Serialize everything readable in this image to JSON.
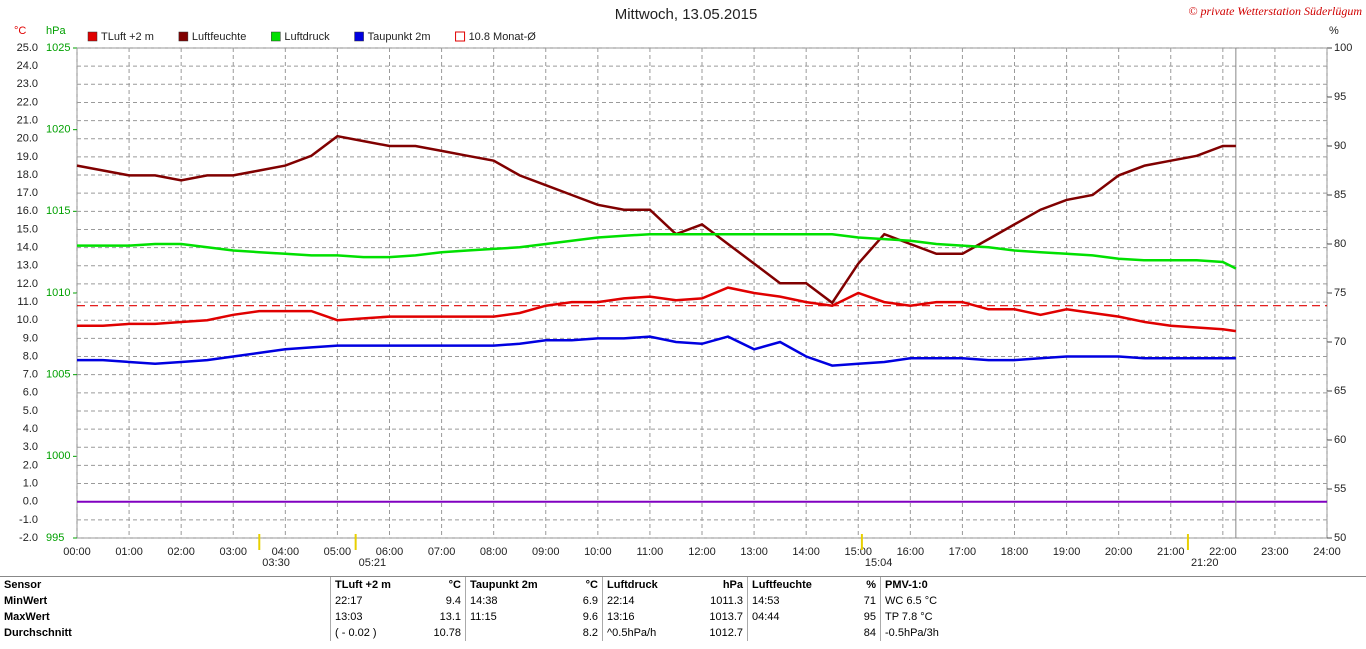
{
  "chart_data": {
    "type": "line",
    "title": "Mittwoch, 13.05.2015",
    "credit": "© private Wetterstation Süderlügum",
    "ylabel": "°C",
    "y2label": "hPa",
    "y3label": "%",
    "x": [
      0,
      0.5,
      1,
      1.5,
      2,
      2.5,
      3,
      3.5,
      4,
      4.5,
      5,
      5.5,
      6,
      6.5,
      7,
      7.5,
      8,
      8.5,
      9,
      9.5,
      10,
      10.5,
      11,
      11.5,
      12,
      12.5,
      13,
      13.5,
      14,
      14.5,
      15,
      15.5,
      16,
      16.5,
      17,
      17.5,
      18,
      18.5,
      19,
      19.5,
      20,
      20.5,
      21,
      21.5,
      22,
      22.25
    ],
    "xlim": [
      0,
      24
    ],
    "xticks": [
      {
        "value": 0,
        "label": "00:00"
      },
      {
        "value": 1,
        "label": "01:00"
      },
      {
        "value": 2,
        "label": "02:00"
      },
      {
        "value": 3,
        "label": "03:00"
      },
      {
        "value": 4,
        "label": "04:00"
      },
      {
        "value": 5,
        "label": "05:00"
      },
      {
        "value": 6,
        "label": "06:00"
      },
      {
        "value": 7,
        "label": "07:00"
      },
      {
        "value": 8,
        "label": "08:00"
      },
      {
        "value": 9,
        "label": "09:00"
      },
      {
        "value": 10,
        "label": "10:00"
      },
      {
        "value": 11,
        "label": "11:00"
      },
      {
        "value": 12,
        "label": "12:00"
      },
      {
        "value": 13,
        "label": "13:00"
      },
      {
        "value": 14,
        "label": "14:00"
      },
      {
        "value": 15,
        "label": "15:00"
      },
      {
        "value": 16,
        "label": "16:00"
      },
      {
        "value": 17,
        "label": "17:00"
      },
      {
        "value": 18,
        "label": "18:00"
      },
      {
        "value": 19,
        "label": "19:00"
      },
      {
        "value": 20,
        "label": "20:00"
      },
      {
        "value": 21,
        "label": "21:00"
      },
      {
        "value": 22,
        "label": "22:00"
      },
      {
        "value": 23,
        "label": "23:00"
      },
      {
        "value": 24,
        "label": "24:00"
      }
    ],
    "ylim": [
      -2,
      25
    ],
    "yticks": [
      {
        "value": -2,
        "label": "-2.0"
      },
      {
        "value": -1,
        "label": "-1.0"
      },
      {
        "value": 0,
        "label": "0.0"
      },
      {
        "value": 1,
        "label": "1.0"
      },
      {
        "value": 2,
        "label": "2.0"
      },
      {
        "value": 3,
        "label": "3.0"
      },
      {
        "value": 4,
        "label": "4.0"
      },
      {
        "value": 5,
        "label": "5.0"
      },
      {
        "value": 6,
        "label": "6.0"
      },
      {
        "value": 7,
        "label": "7.0"
      },
      {
        "value": 8,
        "label": "8.0"
      },
      {
        "value": 9,
        "label": "9.0"
      },
      {
        "value": 10,
        "label": "10.0"
      },
      {
        "value": 11,
        "label": "11.0"
      },
      {
        "value": 12,
        "label": "12.0"
      },
      {
        "value": 13,
        "label": "13.0"
      },
      {
        "value": 14,
        "label": "14.0"
      },
      {
        "value": 15,
        "label": "15.0"
      },
      {
        "value": 16,
        "label": "16.0"
      },
      {
        "value": 17,
        "label": "17.0"
      },
      {
        "value": 18,
        "label": "18.0"
      },
      {
        "value": 19,
        "label": "19.0"
      },
      {
        "value": 20,
        "label": "20.0"
      },
      {
        "value": 21,
        "label": "21.0"
      },
      {
        "value": 22,
        "label": "22.0"
      },
      {
        "value": 23,
        "label": "23.0"
      },
      {
        "value": 24,
        "label": "24.0"
      },
      {
        "value": 25,
        "label": "25.0"
      }
    ],
    "y2lim": [
      995,
      1025
    ],
    "y2ticks": [
      995,
      1000,
      1005,
      1010,
      1015,
      1020,
      1025
    ],
    "y3lim": [
      50,
      100
    ],
    "y3ticks": [
      50,
      55,
      60,
      65,
      70,
      75,
      80,
      85,
      90,
      95,
      100
    ],
    "grid": true,
    "series": [
      {
        "name": "TLuft +2 m",
        "color": "#e00000",
        "axis": "y",
        "values": [
          9.7,
          9.7,
          9.8,
          9.8,
          9.9,
          10.0,
          10.3,
          10.5,
          10.5,
          10.5,
          10.0,
          10.1,
          10.2,
          10.2,
          10.2,
          10.2,
          10.2,
          10.4,
          10.8,
          11.0,
          11.0,
          11.2,
          11.3,
          11.1,
          11.2,
          11.8,
          11.5,
          11.3,
          11.0,
          10.8,
          11.5,
          11.0,
          10.8,
          11.0,
          11.0,
          10.6,
          10.6,
          10.3,
          10.6,
          10.4,
          10.2,
          9.9,
          9.7,
          9.6,
          9.5,
          9.4
        ]
      },
      {
        "name": "Luftfeuchte",
        "color": "#800000",
        "axis": "y3",
        "values": [
          88,
          87.5,
          87,
          87,
          86.5,
          87,
          87,
          87.5,
          88,
          89,
          91,
          90.5,
          90,
          90,
          89.5,
          89,
          88.5,
          87,
          86,
          85,
          84,
          83.5,
          83.5,
          81,
          82,
          80,
          78,
          76,
          76,
          74,
          78,
          81,
          80,
          79,
          79,
          80.5,
          82,
          83.5,
          84.5,
          85,
          87,
          88,
          88.5,
          89,
          90,
          90
        ]
      },
      {
        "name": "Luftdruck",
        "color": "#00e000",
        "axis": "y2",
        "values": [
          1012.9,
          1012.9,
          1012.9,
          1013.0,
          1013.0,
          1012.8,
          1012.6,
          1012.5,
          1012.4,
          1012.3,
          1012.3,
          1012.2,
          1012.2,
          1012.3,
          1012.5,
          1012.6,
          1012.7,
          1012.8,
          1013.0,
          1013.2,
          1013.4,
          1013.5,
          1013.6,
          1013.6,
          1013.6,
          1013.6,
          1013.6,
          1013.6,
          1013.6,
          1013.6,
          1013.4,
          1013.3,
          1013.2,
          1013.0,
          1012.9,
          1012.8,
          1012.6,
          1012.5,
          1012.4,
          1012.3,
          1012.1,
          1012.0,
          1012.0,
          1012.0,
          1011.9,
          1011.5
        ]
      },
      {
        "name": "Taupunkt 2m",
        "color": "#0000e0",
        "axis": "y",
        "values": [
          7.8,
          7.8,
          7.7,
          7.6,
          7.7,
          7.8,
          8.0,
          8.2,
          8.4,
          8.5,
          8.6,
          8.6,
          8.6,
          8.6,
          8.6,
          8.6,
          8.6,
          8.7,
          8.9,
          8.9,
          9.0,
          9.0,
          9.1,
          8.8,
          8.7,
          9.1,
          8.4,
          8.8,
          8.0,
          7.5,
          7.6,
          7.7,
          7.9,
          7.9,
          7.9,
          7.8,
          7.8,
          7.9,
          8.0,
          8.0,
          8.0,
          7.9,
          7.9,
          7.9,
          7.9,
          7.9
        ]
      }
    ],
    "reference": {
      "name": "10.8 Monat-Ø",
      "value": 10.8,
      "color": "#e00000"
    },
    "events": [
      {
        "label": "03:30",
        "x": 3.5
      },
      {
        "label": "05:21",
        "x": 5.35
      },
      {
        "label": "15:04",
        "x": 15.07
      },
      {
        "label": "21:20",
        "x": 21.33
      }
    ]
  },
  "table": {
    "header": [
      "Sensor",
      "TLuft +2 m",
      "°C",
      "Taupunkt 2m",
      "°C",
      "Luftdruck",
      "hPa",
      "Luftfeuchte",
      "%",
      "PMV-1:0"
    ],
    "rows": [
      [
        "MinWert",
        "22:17",
        9.4,
        "14:38",
        6.9,
        "22:14",
        1011.3,
        "14:53",
        71,
        "WC 6.5 °C"
      ],
      [
        "MaxWert",
        "13:03",
        13.1,
        "11:15",
        9.6,
        "13:16",
        1013.7,
        "04:44",
        95,
        "TP 7.8 °C"
      ],
      [
        "Durchschnitt",
        "( - 0.02 )",
        10.78,
        null,
        8.2,
        "^0.5hPa/h",
        1012.7,
        null,
        84,
        "-0.5hPa/3h"
      ]
    ]
  }
}
